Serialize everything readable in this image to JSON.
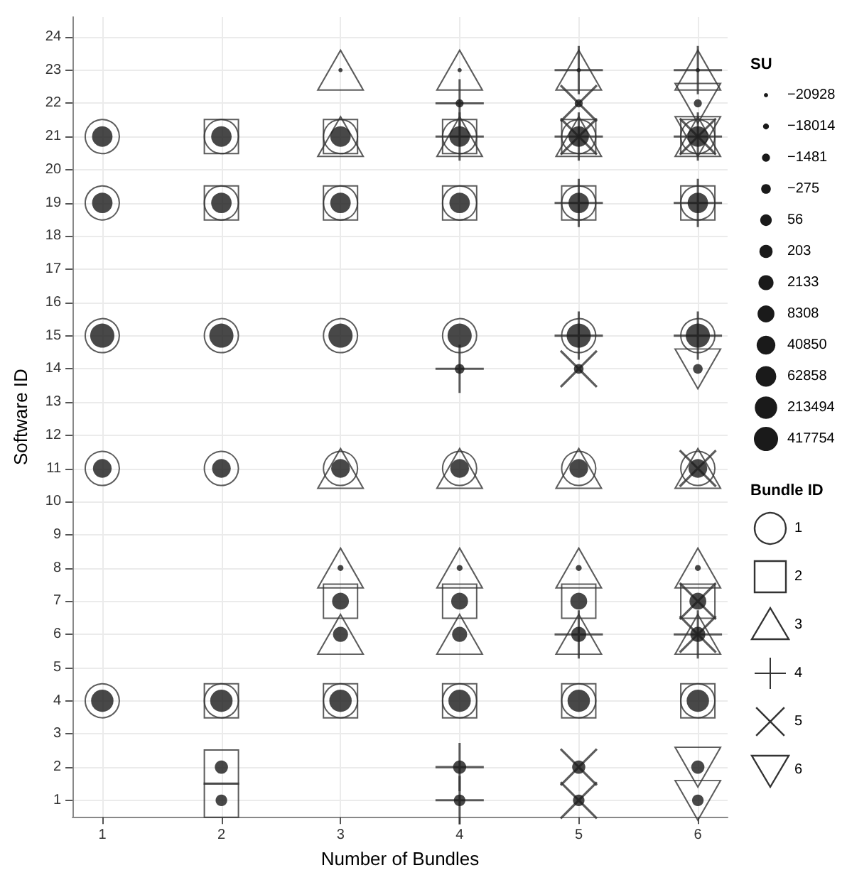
{
  "chart_data": {
    "type": "scatter",
    "xlabel": "Number of Bundles",
    "ylabel": "Software ID",
    "legend_title": "Bundle ID",
    "annotations": [
      "SU"
    ],
    "legend": "right",
    "grid": true,
    "xlim": [
      0.75,
      6.25
    ],
    "xticks": [
      1,
      2,
      3,
      4,
      5,
      6
    ],
    "ylim": [
      0.5,
      24.6
    ],
    "yticks": [
      1,
      2,
      3,
      4,
      5,
      6,
      7,
      8,
      9,
      10,
      11,
      12,
      13,
      14,
      15,
      16,
      17,
      18,
      19,
      20,
      21,
      22,
      23,
      24
    ],
    "series": [
      {
        "name": "−20928",
        "type": "bubble",
        "color": "#1a1a1a",
        "x": [
          3,
          4,
          5,
          6
        ],
        "values": [
          23,
          23,
          23,
          23
        ],
        "sizes": [
          0.03,
          0.03,
          0.03,
          0.03
        ]
      },
      {
        "name": "−18014",
        "type": "bubble",
        "color": "#1a1a1a",
        "x": [
          3,
          4,
          5,
          6
        ],
        "values": [
          8,
          8,
          8,
          8
        ],
        "sizes": [
          0.06,
          0.06,
          0.06,
          0.06
        ]
      },
      {
        "name": "−1481",
        "type": "bubble",
        "color": "#1a1a1a",
        "x": [
          4,
          5,
          6
        ],
        "values": [
          22,
          22,
          22
        ],
        "sizes": [
          0.11,
          0.11,
          0.11
        ]
      },
      {
        "name": "−275",
        "type": "bubble",
        "color": "#1a1a1a",
        "x": [
          4,
          5,
          6
        ],
        "values": [
          14,
          14,
          14
        ],
        "sizes": [
          0.16,
          0.16,
          0.16
        ]
      },
      {
        "name": "56",
        "type": "bubble",
        "color": "#1a1a1a",
        "x": [
          2,
          4,
          5,
          6
        ],
        "values": [
          1,
          1,
          1,
          1
        ],
        "sizes": [
          0.23,
          0.23,
          0.23,
          0.23
        ]
      },
      {
        "name": "203",
        "type": "bubble",
        "color": "#1a1a1a",
        "x": [
          2,
          4,
          5,
          6
        ],
        "values": [
          2,
          2,
          2,
          2
        ],
        "sizes": [
          0.3,
          0.3,
          0.3,
          0.3
        ]
      },
      {
        "name": "2133",
        "type": "bubble",
        "color": "#1a1a1a",
        "x": [
          3,
          4,
          5,
          6
        ],
        "values": [
          6,
          6,
          6,
          6
        ],
        "sizes": [
          0.39,
          0.39,
          0.39,
          0.39
        ]
      },
      {
        "name": "8308",
        "type": "bubble",
        "color": "#1a1a1a",
        "x": [
          3,
          4,
          5,
          6
        ],
        "values": [
          7,
          7,
          7,
          7
        ],
        "sizes": [
          0.49,
          0.49,
          0.49,
          0.49
        ]
      },
      {
        "name": "40850",
        "type": "bubble",
        "color": "#1a1a1a",
        "x": [
          1,
          2,
          3,
          4,
          5,
          6
        ],
        "values": [
          11,
          11,
          11,
          11,
          11,
          11
        ],
        "sizes": [
          0.6,
          0.6,
          0.6,
          0.6,
          0.6,
          0.6
        ]
      },
      {
        "name": "62858",
        "type": "bubble",
        "color": "#1a1a1a",
        "x": [
          1,
          2,
          3,
          4,
          5,
          6,
          1,
          2,
          3,
          4,
          5,
          6
        ],
        "values": [
          19,
          19,
          19,
          19,
          19,
          19,
          21,
          21,
          21,
          21,
          21,
          21
        ],
        "sizes": [
          0.72,
          0.72,
          0.72,
          0.72,
          0.72,
          0.72,
          0.72,
          0.72,
          0.72,
          0.72,
          0.72,
          0.72
        ]
      },
      {
        "name": "213494",
        "type": "bubble",
        "color": "#1a1a1a",
        "x": [
          1,
          2,
          3,
          4,
          5,
          6
        ],
        "values": [
          4,
          4,
          4,
          4,
          4,
          4
        ],
        "sizes": [
          0.86,
          0.86,
          0.86,
          0.86,
          0.86,
          0.86
        ]
      },
      {
        "name": "417754",
        "type": "bubble",
        "color": "#1a1a1a",
        "x": [
          1,
          2,
          3,
          4,
          5,
          6
        ],
        "values": [
          15,
          15,
          15,
          15,
          15,
          15
        ],
        "sizes": [
          1,
          1,
          1,
          1,
          1,
          1
        ]
      },
      {
        "name": "1",
        "marker": "circle",
        "color": "#333333",
        "x": [
          1,
          1,
          1,
          1,
          1,
          2,
          2,
          2,
          2,
          2,
          3,
          3,
          3,
          3,
          3,
          4,
          4,
          4,
          4,
          4,
          5,
          5,
          5,
          5,
          5,
          6,
          6,
          6,
          6,
          6
        ],
        "values": [
          4,
          11,
          15,
          19,
          21,
          4,
          11,
          15,
          19,
          21,
          4,
          11,
          15,
          19,
          21,
          4,
          11,
          15,
          19,
          21,
          4,
          11,
          15,
          19,
          21,
          4,
          11,
          15,
          19,
          21
        ]
      },
      {
        "name": "2",
        "marker": "square",
        "color": "#333333",
        "x": [
          2,
          2,
          2,
          2,
          2,
          3,
          3,
          3,
          3,
          4,
          4,
          4,
          4,
          5,
          5,
          5,
          5,
          6,
          6,
          6,
          6
        ],
        "values": [
          1,
          2,
          4,
          19,
          21,
          4,
          7,
          19,
          21,
          4,
          7,
          19,
          21,
          4,
          7,
          19,
          21,
          4,
          7,
          19,
          21
        ]
      },
      {
        "name": "3",
        "marker": "triangle",
        "color": "#333333",
        "x": [
          3,
          3,
          3,
          3,
          3,
          4,
          4,
          4,
          4,
          4,
          5,
          5,
          5,
          5,
          5,
          6,
          6,
          6,
          6,
          6
        ],
        "values": [
          6,
          8,
          11,
          21,
          23,
          6,
          8,
          11,
          21,
          23,
          6,
          8,
          11,
          21,
          23,
          6,
          8,
          11,
          21,
          23
        ]
      },
      {
        "name": "4",
        "marker": "cross",
        "color": "#333333",
        "x": [
          4,
          4,
          4,
          4,
          4,
          5,
          5,
          5,
          5,
          5,
          6,
          6,
          6,
          6,
          6
        ],
        "values": [
          1,
          2,
          14,
          21,
          22,
          6,
          15,
          19,
          21,
          23,
          6,
          15,
          19,
          21,
          23
        ]
      },
      {
        "name": "5",
        "marker": "x",
        "color": "#333333",
        "x": [
          5,
          5,
          5,
          5,
          5,
          6,
          6,
          6,
          6
        ],
        "values": [
          1,
          2,
          14,
          21,
          22,
          6,
          7,
          11,
          21
        ]
      },
      {
        "name": "6",
        "marker": "triangle-down",
        "color": "#333333",
        "x": [
          6,
          6,
          6,
          6,
          6
        ],
        "values": [
          1,
          2,
          14,
          21,
          22
        ]
      }
    ]
  }
}
